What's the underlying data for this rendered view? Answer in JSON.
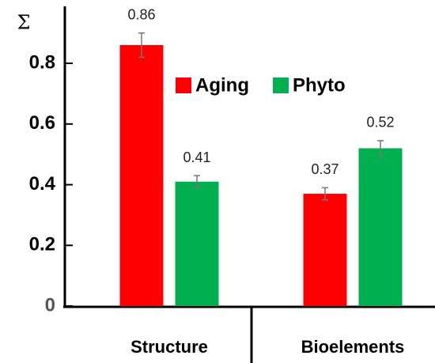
{
  "chart_data": {
    "type": "bar",
    "y_label": "Σ",
    "categories": [
      "Structure",
      "Bioelements"
    ],
    "series": [
      {
        "name": "Aging",
        "color": "#ff0000",
        "values": [
          0.86,
          0.37
        ],
        "errors": [
          0.04,
          0.02
        ]
      },
      {
        "name": "Phyto",
        "color": "#00b050",
        "values": [
          0.41,
          0.52
        ],
        "errors": [
          0.02,
          0.025
        ]
      }
    ],
    "ylim": [
      0,
      0.98
    ],
    "yticks": [
      0,
      0.2,
      0.4,
      0.6,
      0.8
    ],
    "grid": false,
    "legend": "center"
  }
}
